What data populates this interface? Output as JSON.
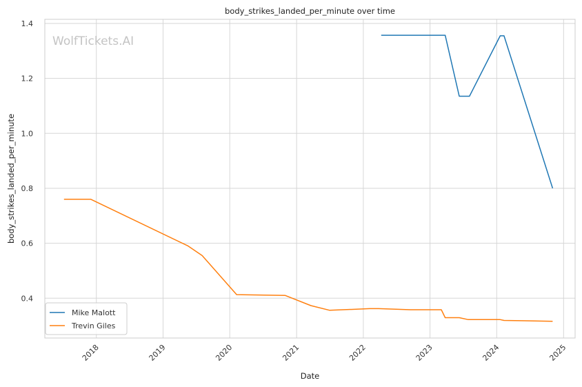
{
  "chart_data": {
    "type": "line",
    "title": "body_strikes_landed_per_minute over time",
    "xlabel": "Date",
    "ylabel": "body_strikes_landed_per_minute",
    "watermark": "WolfTickets.AI",
    "xlim": [
      "2017-03-25",
      "2025-03-05"
    ],
    "ylim": [
      0.255,
      1.415
    ],
    "x_ticks": [
      "2018",
      "2019",
      "2020",
      "2021",
      "2022",
      "2023",
      "2024",
      "2025"
    ],
    "y_ticks": [
      "0.4",
      "0.6",
      "0.8",
      "1.0",
      "1.2",
      "1.4"
    ],
    "grid": true,
    "legend": "lower-left",
    "series": [
      {
        "name": "Mike Malott",
        "color": "#1f77b4",
        "x": [
          "2022-04-09",
          "2023-03-25",
          "2023-06-10",
          "2023-08-05",
          "2024-01-20",
          "2024-02-10",
          "2024-11-02"
        ],
        "y": [
          1.357,
          1.357,
          1.135,
          1.135,
          1.355,
          1.355,
          0.8
        ]
      },
      {
        "name": "Trevin Giles",
        "color": "#ff7f0e",
        "x": [
          "2017-07-08",
          "2017-12-02",
          "2019-05-18",
          "2019-08-03",
          "2020-02-08",
          "2020-10-31",
          "2021-03-20",
          "2021-07-01",
          "2022-02-05",
          "2022-03-26",
          "2022-09-17",
          "2023-03-04",
          "2023-03-25",
          "2023-06-10",
          "2023-07-29",
          "2024-01-20",
          "2024-02-10",
          "2024-11-02"
        ],
        "y": [
          0.76,
          0.76,
          0.59,
          0.555,
          0.413,
          0.41,
          0.373,
          0.356,
          0.362,
          0.362,
          0.358,
          0.358,
          0.329,
          0.329,
          0.322,
          0.322,
          0.319,
          0.316
        ]
      }
    ]
  }
}
